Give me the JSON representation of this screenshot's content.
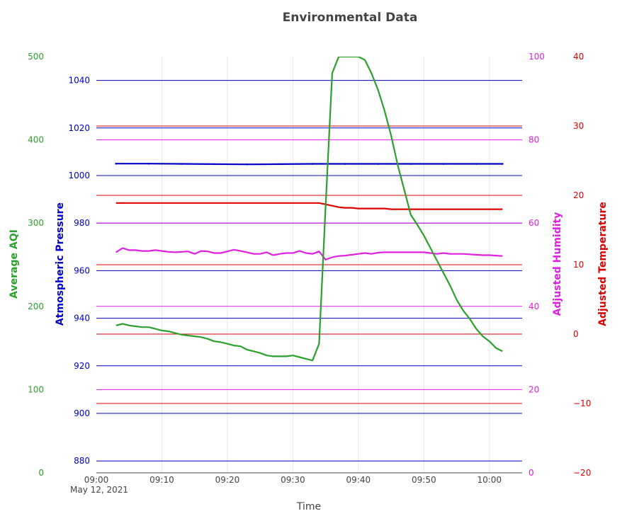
{
  "chart_data": {
    "type": "line",
    "title": "Environmental Data",
    "xlabel": "Time",
    "x_ticks": [
      "09:00",
      "09:10",
      "09:20",
      "09:30",
      "09:40",
      "09:50",
      "10:00"
    ],
    "x_date_label": "May 12, 2021",
    "x_range": [
      "09:00",
      "10:05"
    ],
    "grid": true,
    "axes": {
      "aqi": {
        "label": "Average AQI",
        "color": "#2ca02c",
        "range": [
          0,
          500
        ],
        "ticks": [
          0,
          100,
          200,
          300,
          400,
          500
        ]
      },
      "pressure": {
        "label": "Atmospheric Pressure",
        "color": "#0000cc",
        "range": [
          875,
          1050
        ],
        "ticks": [
          880,
          900,
          920,
          940,
          960,
          980,
          1000,
          1020,
          1040
        ]
      },
      "humidity": {
        "label": "Adjusted Humidity",
        "color": "#e020e0",
        "range": [
          0,
          100
        ],
        "ticks": [
          0,
          20,
          40,
          60,
          80,
          100
        ]
      },
      "temperature": {
        "label": "Adjusted Temperature",
        "color": "#dd0000",
        "range": [
          -20,
          40
        ],
        "ticks": [
          -20,
          -10,
          0,
          10,
          20,
          30,
          40
        ]
      }
    },
    "series": [
      {
        "axis": "aqi",
        "x": [
          "09:03",
          "09:04",
          "09:05",
          "09:06",
          "09:07",
          "09:08",
          "09:09",
          "09:10",
          "09:11",
          "09:12",
          "09:13",
          "09:14",
          "09:15",
          "09:16",
          "09:17",
          "09:18",
          "09:19",
          "09:20",
          "09:21",
          "09:22",
          "09:23",
          "09:24",
          "09:25",
          "09:26",
          "09:27",
          "09:28",
          "09:29",
          "09:30",
          "09:31",
          "09:32",
          "09:33",
          "09:34",
          "09:35",
          "09:36",
          "09:37",
          "09:38",
          "09:39",
          "09:40",
          "09:41",
          "09:42",
          "09:43",
          "09:44",
          "09:45",
          "09:46",
          "09:47",
          "09:48",
          "09:49",
          "09:50",
          "09:51",
          "09:52",
          "09:53",
          "09:54",
          "09:55",
          "09:56",
          "09:57",
          "09:58",
          "09:59",
          "10:00",
          "10:01",
          "10:02"
        ],
        "values": [
          177,
          179,
          177,
          176,
          175,
          175,
          173,
          171,
          170,
          168,
          166,
          165,
          164,
          163,
          161,
          158,
          157,
          155,
          153,
          152,
          148,
          146,
          144,
          141,
          140,
          140,
          140,
          141,
          139,
          137,
          135,
          155,
          320,
          480,
          500,
          500,
          500,
          500,
          496,
          480,
          460,
          435,
          405,
          370,
          340,
          310,
          298,
          285,
          270,
          255,
          240,
          225,
          208,
          195,
          185,
          173,
          164,
          158,
          150,
          146
        ]
      },
      {
        "axis": "pressure",
        "x": [
          "09:03",
          "09:08",
          "09:13",
          "09:18",
          "09:23",
          "09:28",
          "09:33",
          "09:38",
          "09:43",
          "09:48",
          "09:53",
          "09:58",
          "10:02"
        ],
        "values": [
          1005,
          1005,
          1004.9,
          1004.8,
          1004.7,
          1004.8,
          1004.9,
          1004.9,
          1004.9,
          1004.9,
          1004.9,
          1004.9,
          1004.9
        ]
      },
      {
        "axis": "humidity",
        "x": [
          "09:03",
          "09:04",
          "09:05",
          "09:06",
          "09:07",
          "09:08",
          "09:09",
          "09:10",
          "09:11",
          "09:12",
          "09:13",
          "09:14",
          "09:15",
          "09:16",
          "09:17",
          "09:18",
          "09:19",
          "09:20",
          "09:21",
          "09:22",
          "09:23",
          "09:24",
          "09:25",
          "09:26",
          "09:27",
          "09:28",
          "09:29",
          "09:30",
          "09:31",
          "09:32",
          "09:33",
          "09:34",
          "09:35",
          "09:36",
          "09:37",
          "09:38",
          "09:39",
          "09:40",
          "09:41",
          "09:42",
          "09:43",
          "09:44",
          "09:45",
          "09:46",
          "09:47",
          "09:48",
          "09:49",
          "09:50",
          "09:51",
          "09:52",
          "09:53",
          "09:54",
          "09:55",
          "09:56",
          "09:57",
          "09:58",
          "09:59",
          "10:00",
          "10:01",
          "10:02"
        ],
        "values": [
          53,
          54,
          53.5,
          53.5,
          53.3,
          53.3,
          53.5,
          53.3,
          53.1,
          53,
          53.1,
          53.2,
          52.6,
          53.3,
          53.2,
          52.8,
          52.8,
          53.2,
          53.6,
          53.3,
          53,
          52.6,
          52.6,
          53,
          52.3,
          52.6,
          52.8,
          52.8,
          53.3,
          52.8,
          52.6,
          53.2,
          51.2,
          51.8,
          52.1,
          52.2,
          52.4,
          52.6,
          52.8,
          52.6,
          52.9,
          53,
          53,
          53,
          53,
          53,
          53,
          53,
          52.8,
          52.6,
          52.8,
          52.6,
          52.6,
          52.6,
          52.5,
          52.4,
          52.3,
          52.3,
          52.2,
          52.1
        ]
      },
      {
        "axis": "temperature",
        "x": [
          "09:03",
          "09:08",
          "09:13",
          "09:18",
          "09:23",
          "09:28",
          "09:33",
          "09:34",
          "09:35",
          "09:36",
          "09:37",
          "09:38",
          "09:39",
          "09:40",
          "09:43",
          "09:44",
          "09:45",
          "09:50",
          "09:55",
          "10:00",
          "10:02"
        ],
        "values": [
          18.9,
          18.9,
          18.9,
          18.9,
          18.9,
          18.9,
          18.9,
          18.9,
          18.7,
          18.5,
          18.3,
          18.2,
          18.2,
          18.1,
          18.1,
          18.1,
          18.0,
          18.0,
          18.0,
          18.0,
          18.0
        ]
      }
    ]
  }
}
